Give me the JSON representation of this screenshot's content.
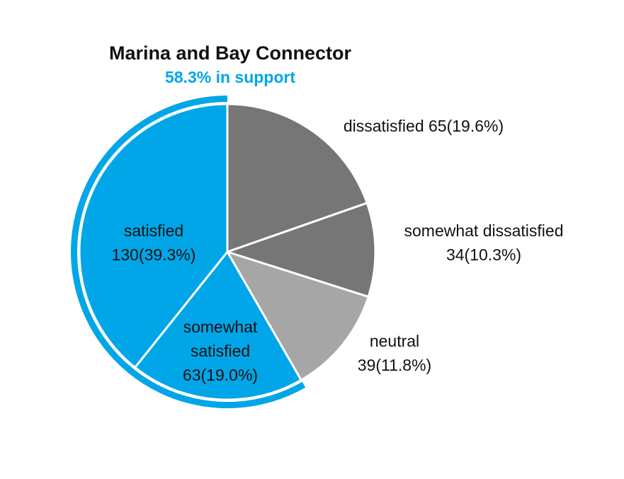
{
  "chart_data": {
    "type": "pie",
    "title": "Marina and Bay Connector",
    "subtitle": "58.3% in support",
    "slices": [
      {
        "label": "dissatisfied",
        "count": 65,
        "percent": "19.6%",
        "color": "#767676",
        "text_color": "#111111",
        "label_lines": [
          "dissatisfied  65(19.6%)"
        ]
      },
      {
        "label": "somewhat dissatisfied",
        "count": 34,
        "percent": "10.3%",
        "color": "#767676",
        "text_color": "#111111",
        "label_lines": [
          "somewhat dissatisfied",
          "34(10.3%)"
        ]
      },
      {
        "label": "neutral",
        "count": 39,
        "percent": "11.8%",
        "color": "#a6a6a6",
        "text_color": "#111111",
        "label_lines": [
          "neutral",
          "39(11.8%)"
        ]
      },
      {
        "label": "somewhat satisfied",
        "count": 63,
        "percent": "19.0%",
        "color": "#00a6e8",
        "text_color": "#111111",
        "label_lines": [
          "somewhat",
          "satisfied",
          "63(19.0%)"
        ]
      },
      {
        "label": "satisfied",
        "count": 130,
        "percent": "39.3%",
        "color": "#00a6e8",
        "text_color": "#111111",
        "label_lines": [
          "satisfied",
          "130(39.3%)"
        ]
      }
    ],
    "support_arc": {
      "covers": [
        "somewhat satisfied",
        "satisfied"
      ],
      "percent": "58.3%",
      "color": "#00a6e8"
    },
    "accent_color": "#00a6e8"
  }
}
